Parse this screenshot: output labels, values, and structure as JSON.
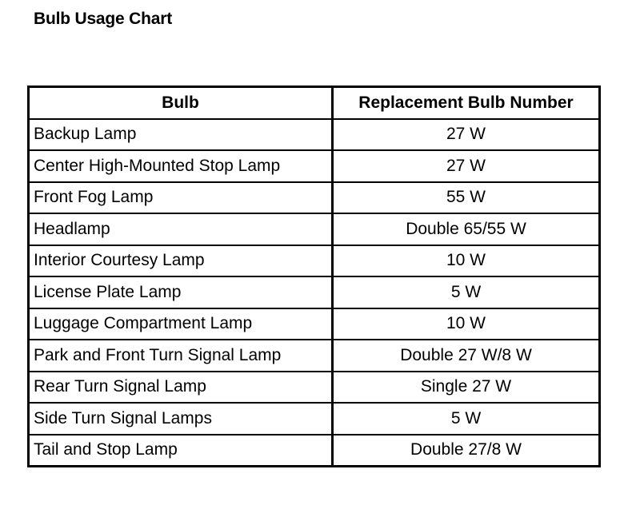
{
  "title": "Bulb Usage Chart",
  "table": {
    "headers": [
      "Bulb",
      "Replacement Bulb Number"
    ],
    "rows": [
      [
        "Backup Lamp",
        "27 W"
      ],
      [
        "Center High-Mounted Stop Lamp",
        "27 W"
      ],
      [
        "Front Fog Lamp",
        "55 W"
      ],
      [
        "Headlamp",
        "Double 65/55 W"
      ],
      [
        "Interior Courtesy Lamp",
        "10 W"
      ],
      [
        "License Plate Lamp",
        "5 W"
      ],
      [
        "Luggage Compartment Lamp",
        "10 W"
      ],
      [
        "Park and Front Turn Signal Lamp",
        "Double 27 W/8 W"
      ],
      [
        "Rear Turn Signal Lamp",
        "Single 27 W"
      ],
      [
        "Side Turn Signal Lamps",
        "5 W"
      ],
      [
        "Tail and Stop Lamp",
        "Double 27/8 W"
      ]
    ]
  }
}
